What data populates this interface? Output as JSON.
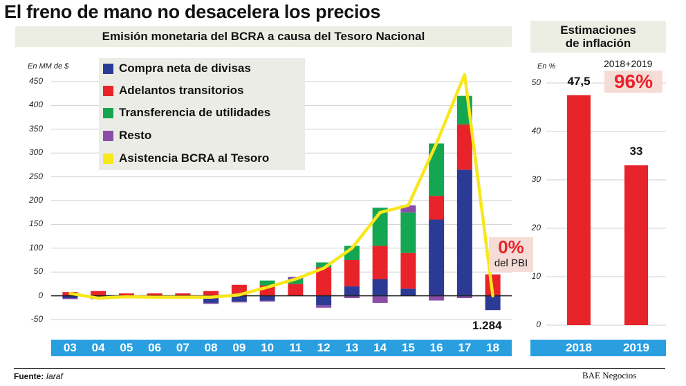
{
  "title": "El freno de mano no desacelera los precios",
  "left_panel": {
    "subtitle": "Emisión monetaria del BCRA a causa del Tesoro Nacional",
    "units": "En MM de $",
    "callout_value": "0%",
    "callout_label": "del PBI",
    "last_point_label": "1.284"
  },
  "right_panel": {
    "subtitle_line1": "Estimaciones",
    "subtitle_line2": "de inflación",
    "units": "En %",
    "combined_label": "2018+2019",
    "combined_value": "96%"
  },
  "source": {
    "label": "Fuente:",
    "name": "Iaraf"
  },
  "brand": "BAE Negocios",
  "colors": {
    "compra": "#2b3a94",
    "adelantos": "#e8232a",
    "transferencia": "#14a651",
    "resto": "#8a4ea8",
    "asistencia": "#f8e71c",
    "xband": "#2a9fe0",
    "callout_bg": "#f6dcd6"
  },
  "chart_data": [
    {
      "type": "bar",
      "stacked": true,
      "title": "Emisión monetaria del BCRA a causa del Tesoro Nacional",
      "ylabel": "En MM de $",
      "ylim": [
        -50,
        450
      ],
      "yticks": [
        -50,
        0,
        50,
        100,
        150,
        200,
        250,
        300,
        350,
        400,
        450
      ],
      "grid": true,
      "legend_position": "top-left",
      "categories": [
        "03",
        "04",
        "05",
        "06",
        "07",
        "08",
        "09",
        "10",
        "11",
        "12",
        "13",
        "14",
        "15",
        "16",
        "17",
        "18"
      ],
      "series": [
        {
          "name": "Compra neta de divisas",
          "color": "#2b3a94",
          "values": [
            -5,
            -5,
            0,
            0,
            0,
            -15,
            -12,
            -10,
            0,
            -20,
            20,
            35,
            15,
            160,
            265,
            -30
          ]
        },
        {
          "name": "Adelantos transitorios",
          "color": "#e8232a",
          "values": [
            8,
            10,
            5,
            5,
            5,
            10,
            23,
            22,
            25,
            60,
            55,
            70,
            75,
            50,
            95,
            45
          ]
        },
        {
          "name": "Transferencia de utilidades",
          "color": "#14a651",
          "values": [
            0,
            0,
            0,
            0,
            0,
            0,
            0,
            10,
            10,
            10,
            30,
            80,
            85,
            110,
            60,
            0
          ]
        },
        {
          "name": "Resto",
          "color": "#8a4ea8",
          "values": [
            -2,
            -2,
            -2,
            -2,
            -2,
            -2,
            -2,
            -2,
            5,
            -5,
            -5,
            -15,
            15,
            -10,
            -5,
            0
          ]
        }
      ],
      "line": {
        "name": "Asistencia BCRA al Tesoro",
        "color": "#f8e71c",
        "values": [
          5,
          -5,
          -2,
          -3,
          -3,
          -3,
          2,
          18,
          35,
          58,
          100,
          175,
          190,
          320,
          465,
          0
        ]
      }
    },
    {
      "type": "bar",
      "title": "Estimaciones de inflación",
      "ylabel": "En %",
      "ylim": [
        0,
        50
      ],
      "yticks": [
        0,
        10,
        20,
        30,
        40,
        50
      ],
      "grid": true,
      "categories": [
        "2018",
        "2019"
      ],
      "values": [
        47.5,
        33
      ],
      "data_labels": [
        "47,5",
        "33"
      ],
      "color": "#e8232a"
    }
  ]
}
